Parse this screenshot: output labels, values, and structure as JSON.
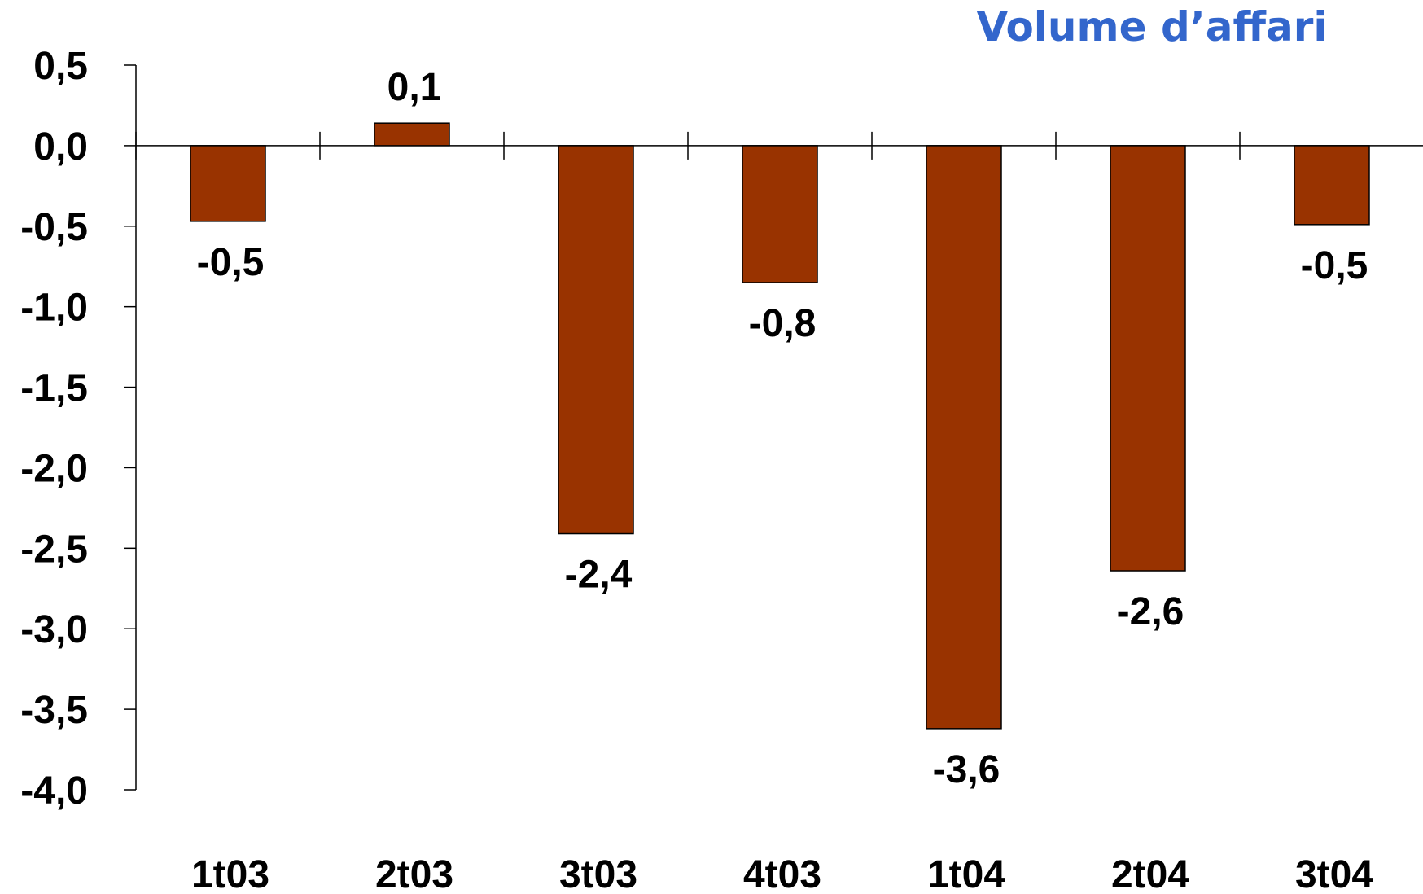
{
  "chart_data": {
    "type": "bar",
    "title": "Volume d’affari",
    "xlabel": "",
    "ylabel": "",
    "categories": [
      "1t03",
      "2t03",
      "3t03",
      "4t03",
      "1t04",
      "2t04",
      "3t04"
    ],
    "values": [
      -0.47,
      0.14,
      -2.41,
      -0.85,
      -3.62,
      -2.64,
      -0.49
    ],
    "data_labels": [
      "-0,5",
      "0,1",
      "-2,4",
      "-0,8",
      "-3,6",
      "-2,6",
      "-0,5"
    ],
    "ylim": [
      -4.0,
      0.5
    ],
    "yticks": [
      0.5,
      0.0,
      -0.5,
      -1.0,
      -1.5,
      -2.0,
      -2.5,
      -3.0,
      -3.5,
      -4.0
    ],
    "ytick_labels": [
      "0,5",
      "0,0",
      "-0,5",
      "-1,0",
      "-1,5",
      "-2,0",
      "-2,5",
      "-3,0",
      "-3,5",
      "-4,0"
    ],
    "grid": false,
    "legend": "none",
    "colors": {
      "bar_fill": "#993300",
      "bar_stroke": "#000000",
      "title": "#3366cc",
      "axis": "#000000"
    }
  }
}
